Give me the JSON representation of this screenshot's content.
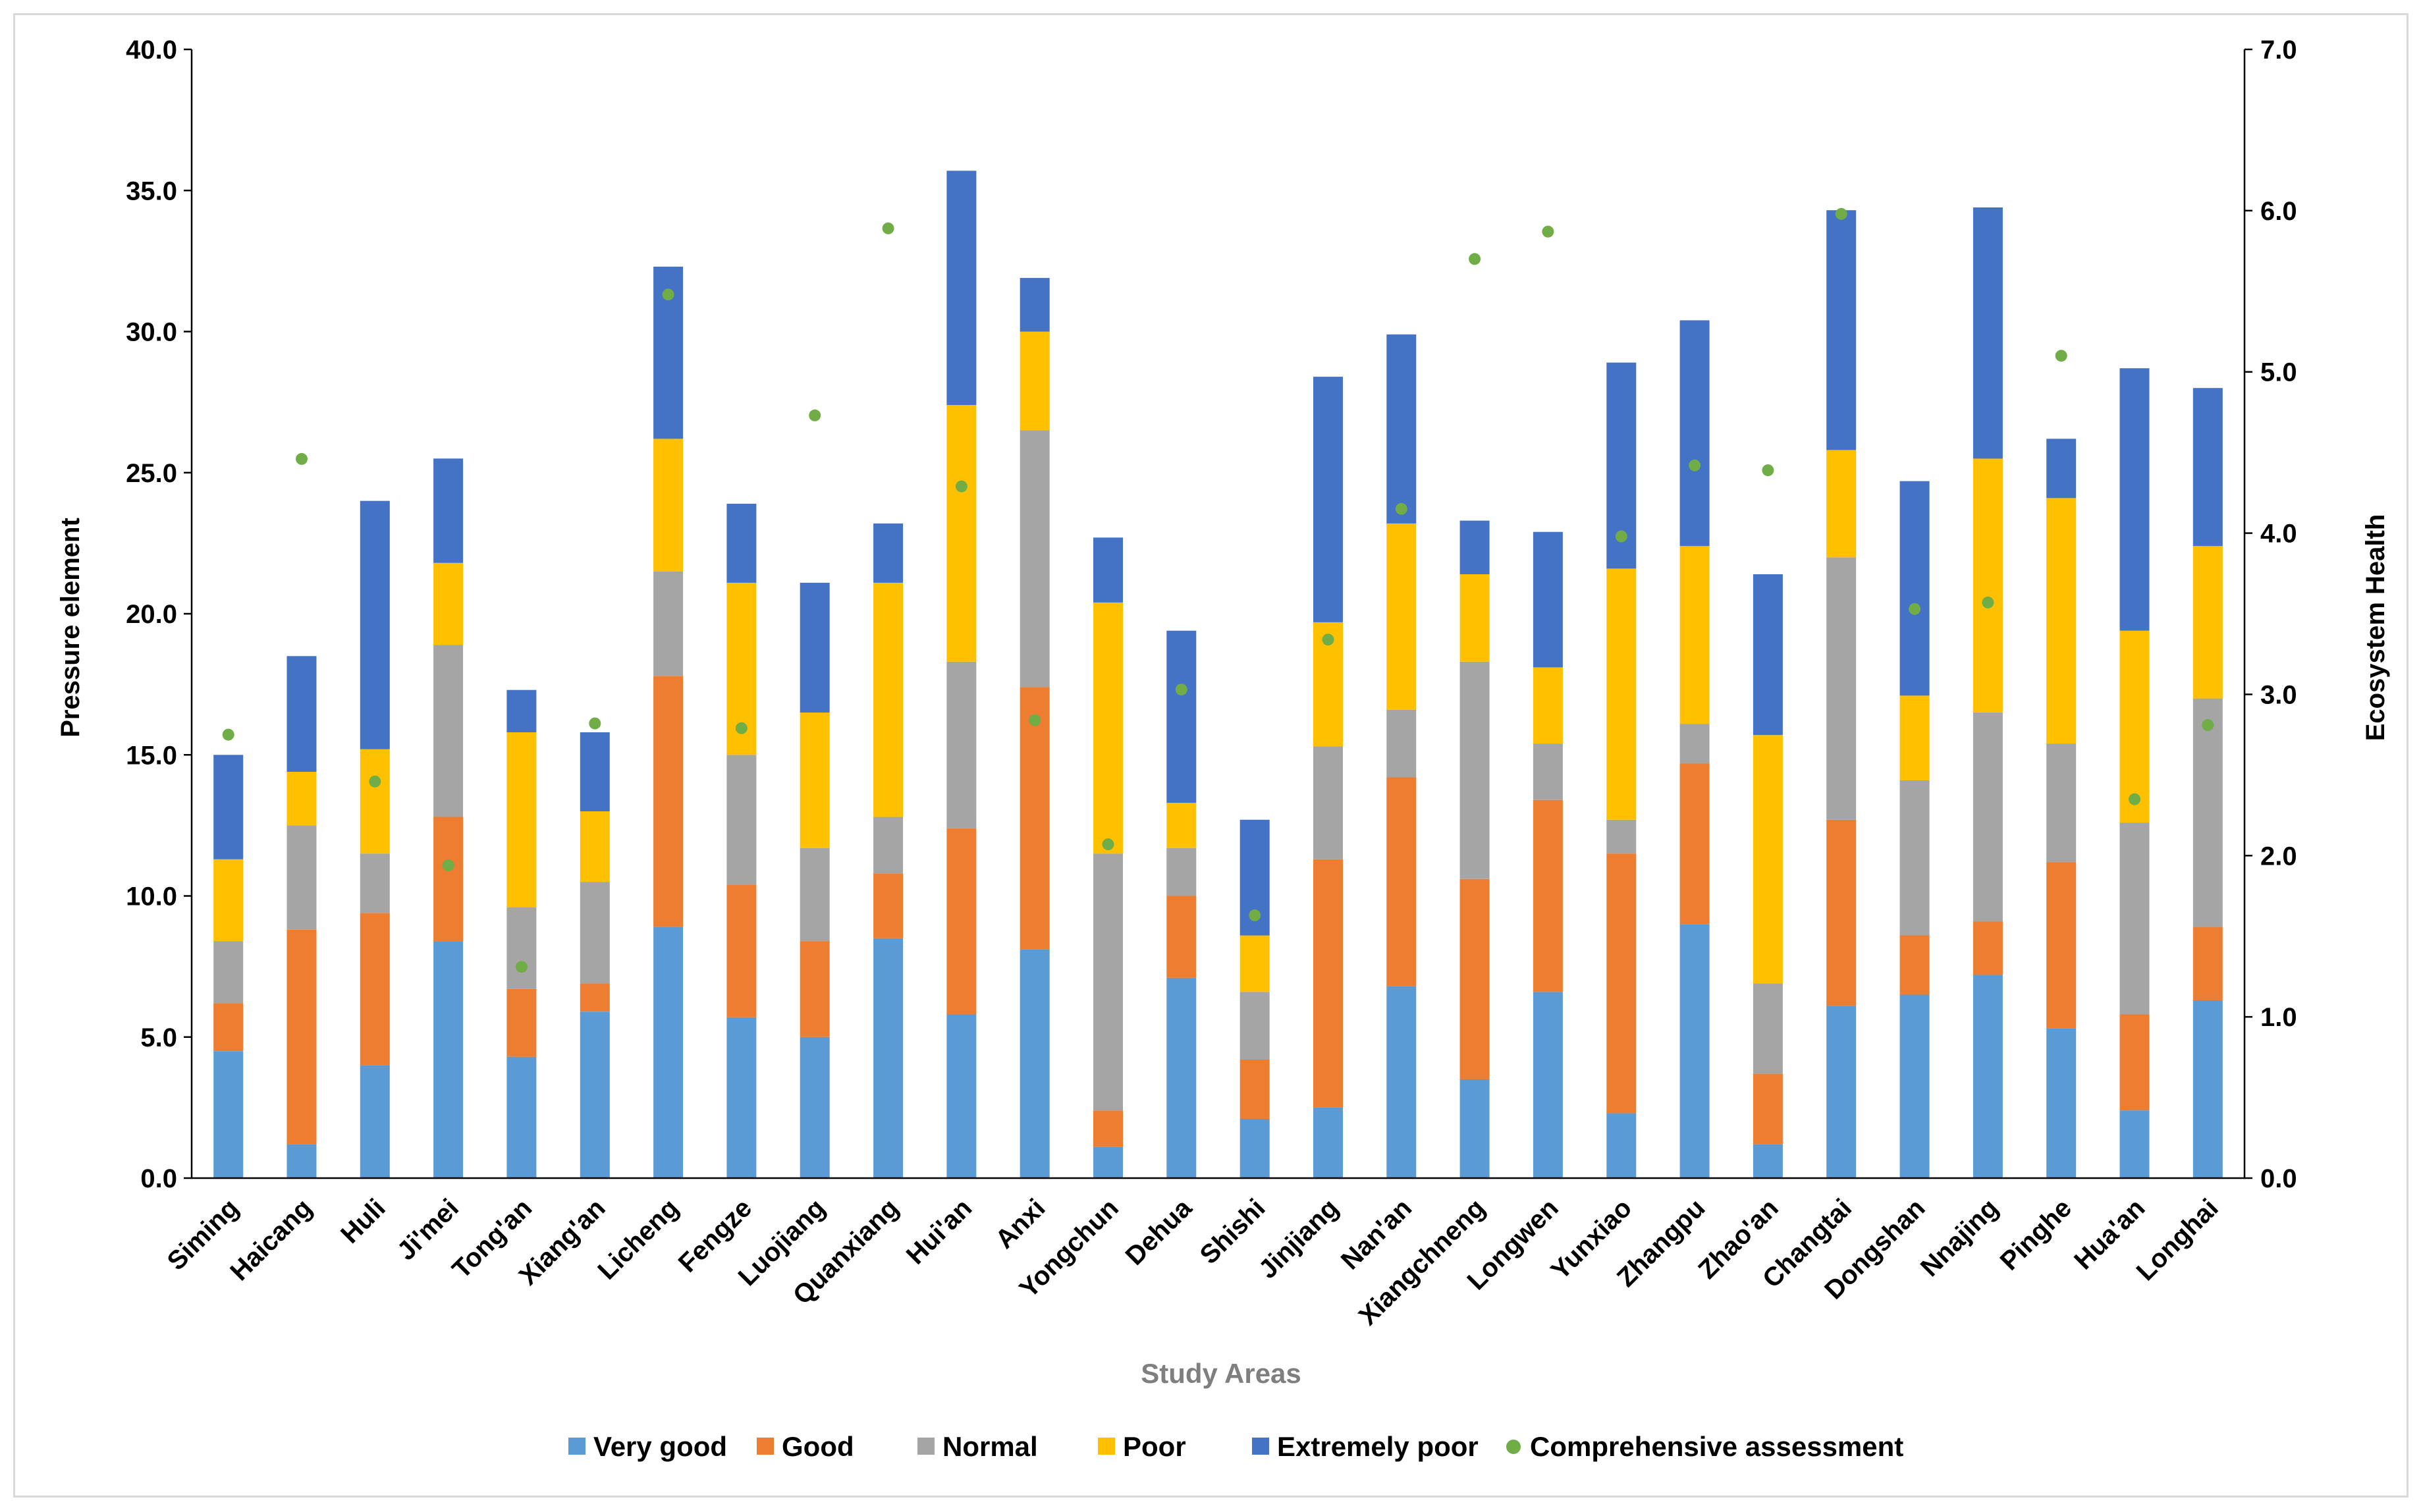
{
  "chart_data": {
    "type": "bar",
    "stacked": true,
    "xlabel": "Study Areas",
    "ylabel": "Pressure element",
    "y2label": "Ecosystem Health",
    "ylim": [
      0,
      40
    ],
    "y2lim": [
      0,
      7
    ],
    "yticks": [
      "0.0",
      "5.0",
      "10.0",
      "15.0",
      "20.0",
      "25.0",
      "30.0",
      "35.0",
      "40.0"
    ],
    "y2ticks": [
      "0.0",
      "1.0",
      "2.0",
      "3.0",
      "4.0",
      "5.0",
      "6.0",
      "7.0"
    ],
    "grid": false,
    "legend_position": "bottom",
    "categories": [
      "Siming",
      "Haicang",
      "Huli",
      "Ji'mei",
      "Tong'an",
      "Xiang'an",
      "Licheng",
      "Fengze",
      "Luojiang",
      "Quanxiang",
      "Hui'an",
      "Anxi",
      "Yongchun",
      "Dehua",
      "Shishi",
      "Jinjiang",
      "Nan'an",
      "Xiangchneng",
      "Longwen",
      "Yunxiao",
      "Zhangpu",
      "Zhao'an",
      "Changtai",
      "Dongshan",
      "Nnajing",
      "Pinghe",
      "Hua'an",
      "Longhai"
    ],
    "series": [
      {
        "name": "Very good",
        "color": "#5b9bd5",
        "values": [
          4.5,
          1.2,
          4.0,
          8.4,
          4.3,
          5.9,
          8.9,
          5.7,
          5.0,
          8.5,
          5.8,
          8.1,
          1.1,
          7.1,
          2.1,
          2.5,
          6.8,
          3.5,
          6.6,
          2.3,
          9.0,
          1.2,
          6.1,
          6.5,
          7.2,
          5.3,
          2.4,
          6.3
        ]
      },
      {
        "name": "Good",
        "color": "#ed7d31",
        "values": [
          1.7,
          7.6,
          5.4,
          4.4,
          2.4,
          1.0,
          8.9,
          4.7,
          3.4,
          2.3,
          6.6,
          9.3,
          1.3,
          2.9,
          2.1,
          8.8,
          7.4,
          7.1,
          6.8,
          9.2,
          5.7,
          2.5,
          6.6,
          2.1,
          1.9,
          5.9,
          3.4,
          2.6
        ]
      },
      {
        "name": "Normal",
        "color": "#a5a5a5",
        "values": [
          2.2,
          3.7,
          2.1,
          6.1,
          2.9,
          3.6,
          3.7,
          4.6,
          3.3,
          2.0,
          5.9,
          9.1,
          9.1,
          1.7,
          2.4,
          4.0,
          2.4,
          7.7,
          2.0,
          1.2,
          1.4,
          3.2,
          9.3,
          5.5,
          7.4,
          4.2,
          6.8,
          8.1
        ]
      },
      {
        "name": "Poor",
        "color": "#ffc000",
        "values": [
          2.9,
          1.9,
          3.7,
          2.9,
          6.2,
          2.5,
          4.7,
          6.1,
          4.8,
          8.3,
          9.1,
          3.5,
          8.9,
          1.6,
          2.0,
          4.4,
          6.6,
          3.1,
          2.7,
          8.9,
          6.3,
          8.8,
          3.8,
          3.0,
          9.0,
          8.7,
          6.8,
          5.4
        ]
      },
      {
        "name": "Extremely poor",
        "color": "#4472c4",
        "values": [
          3.7,
          4.1,
          8.8,
          3.7,
          1.5,
          2.8,
          6.1,
          2.8,
          4.6,
          2.1,
          8.3,
          1.9,
          2.3,
          6.1,
          4.1,
          8.7,
          6.7,
          1.9,
          4.8,
          7.3,
          8.0,
          5.7,
          8.5,
          7.6,
          8.9,
          2.1,
          9.3,
          5.6
        ]
      },
      {
        "name": "Comprehensive assessment",
        "color": "#70ad47",
        "axis": "right",
        "marker": "dot",
        "values": [
          2.75,
          4.46,
          2.46,
          1.94,
          1.31,
          2.82,
          5.48,
          2.79,
          4.73,
          5.89,
          4.29,
          2.84,
          2.07,
          3.03,
          1.63,
          3.34,
          4.15,
          5.7,
          5.87,
          3.98,
          4.42,
          4.39,
          5.98,
          3.53,
          3.57,
          5.1,
          2.35,
          2.81
        ]
      }
    ]
  }
}
